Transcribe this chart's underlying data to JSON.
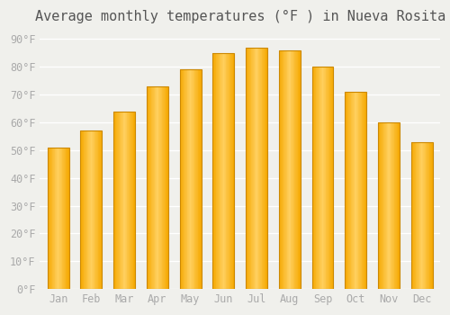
{
  "title": "Average monthly temperatures (°F ) in Nueva Rosita",
  "months": [
    "Jan",
    "Feb",
    "Mar",
    "Apr",
    "May",
    "Jun",
    "Jul",
    "Aug",
    "Sep",
    "Oct",
    "Nov",
    "Dec"
  ],
  "values": [
    51,
    57,
    64,
    73,
    79,
    85,
    87,
    86,
    80,
    71,
    60,
    53
  ],
  "bar_color_center": "#FFD060",
  "bar_color_edge": "#F5A800",
  "bar_border_color": "#CC8800",
  "background_color": "#F0F0EC",
  "yticks": [
    0,
    10,
    20,
    30,
    40,
    50,
    60,
    70,
    80,
    90
  ],
  "ylim": [
    0,
    93
  ],
  "grid_color": "#FFFFFF",
  "title_fontsize": 11,
  "tick_fontsize": 8.5,
  "tick_color": "#AAAAAA",
  "title_color": "#555555"
}
